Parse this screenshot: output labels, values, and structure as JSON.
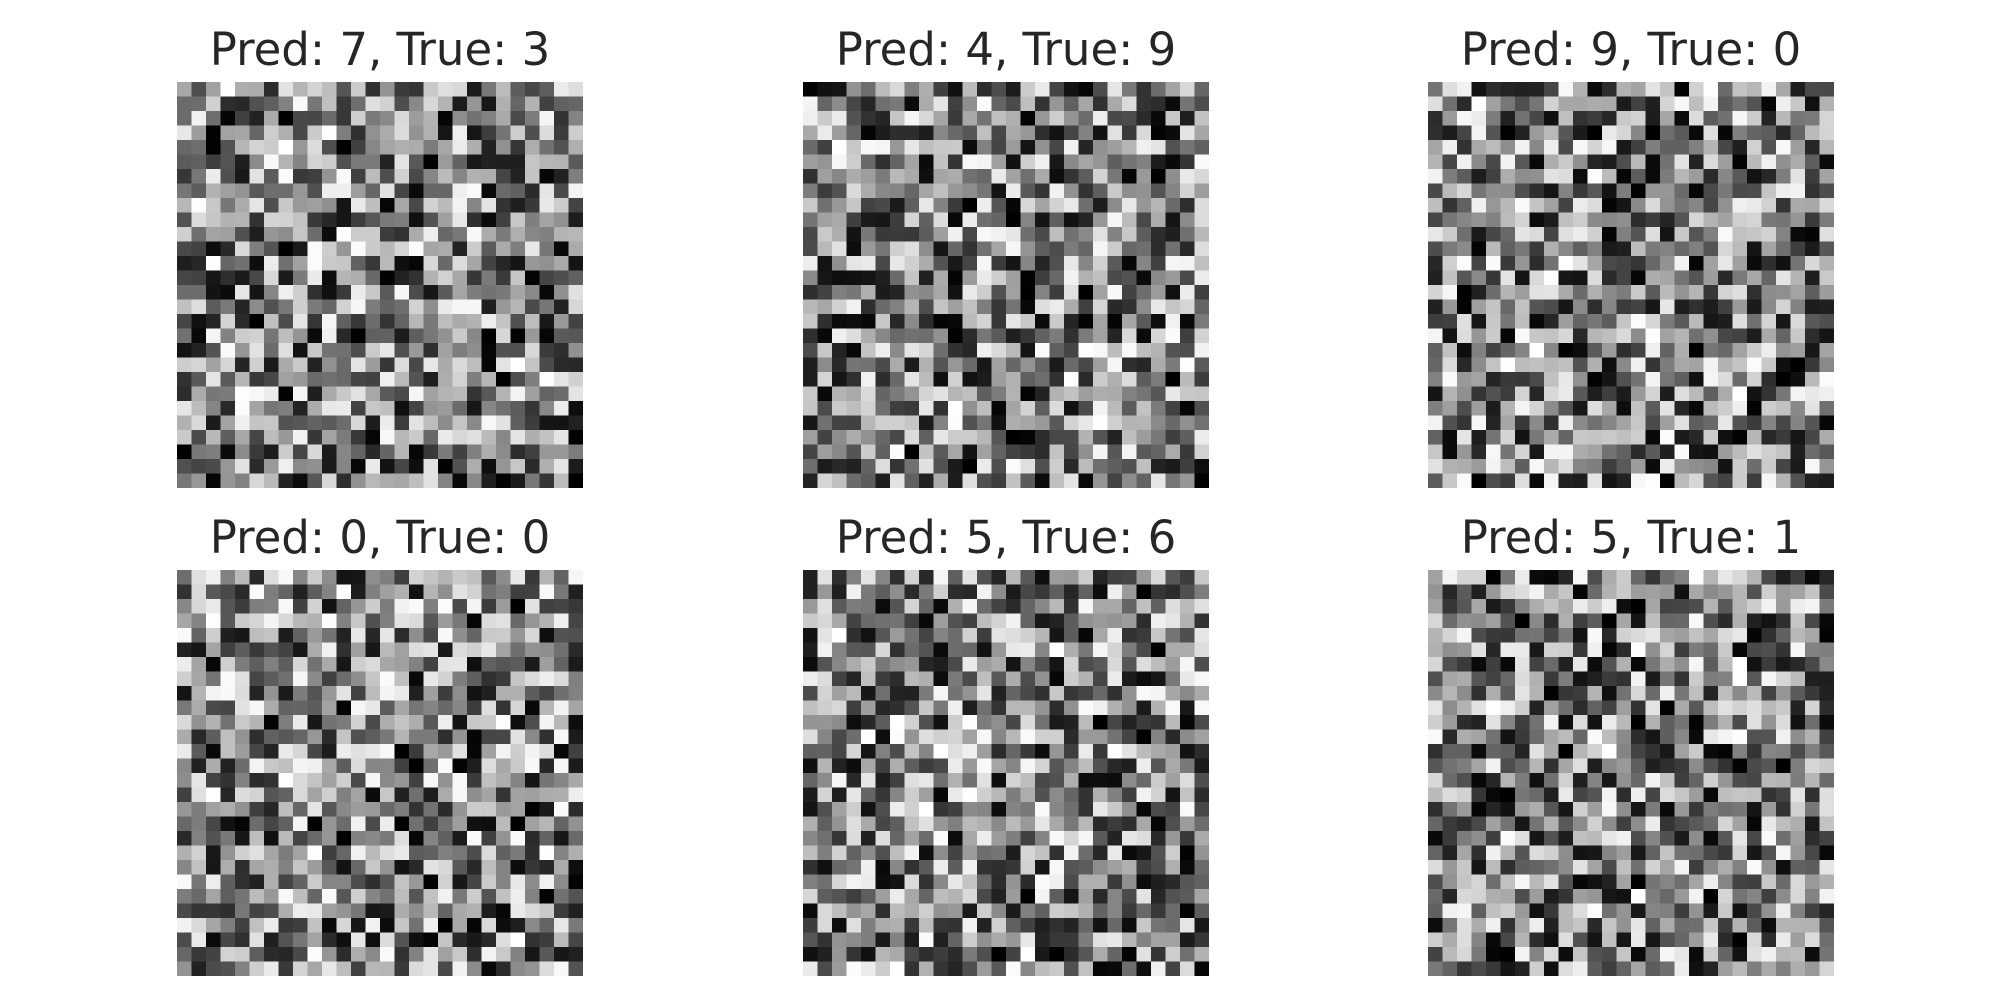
{
  "panels": [
    {
      "title": "Pred: 7, True: 3",
      "pred": 7,
      "true": 3
    },
    {
      "title": "Pred: 4, True: 9",
      "pred": 4,
      "true": 9
    },
    {
      "title": "Pred: 9, True: 0",
      "pred": 9,
      "true": 0
    },
    {
      "title": "Pred: 0, True: 0",
      "pred": 0,
      "true": 0
    },
    {
      "title": "Pred: 5, True: 6",
      "pred": 5,
      "true": 6
    },
    {
      "title": "Pred: 5, True: 1",
      "pred": 5,
      "true": 1
    }
  ],
  "image": {
    "rows": 28,
    "cols": 28,
    "colormap": "gray"
  }
}
